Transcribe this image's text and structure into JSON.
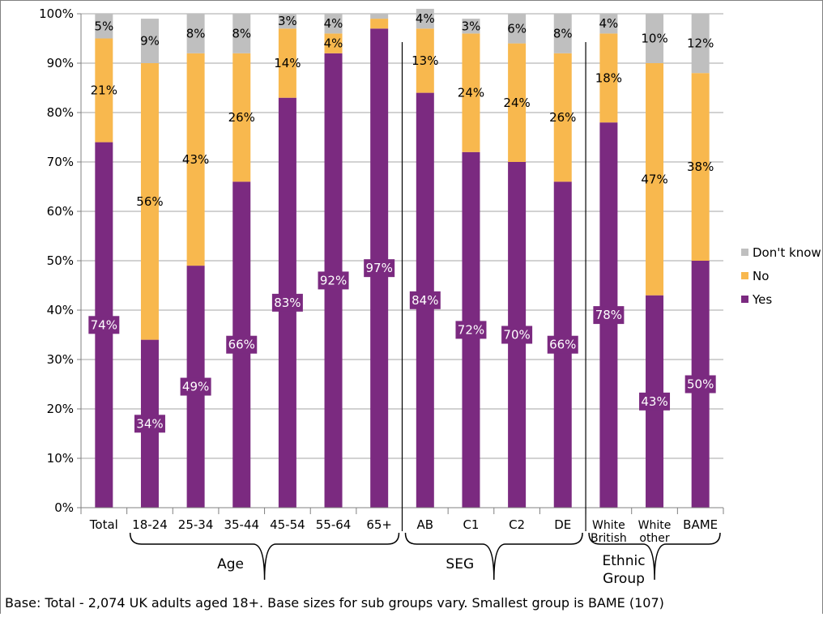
{
  "chart_data": {
    "type": "bar",
    "stacked": true,
    "categories": [
      "Total",
      "18-24",
      "25-34",
      "35-44",
      "45-54",
      "55-64",
      "65+",
      "AB",
      "C1",
      "C2",
      "DE",
      "White British",
      "White other",
      "BAME"
    ],
    "category_lines": [
      [
        "Total"
      ],
      [
        "18-24"
      ],
      [
        "25-34"
      ],
      [
        "35-44"
      ],
      [
        "45-54"
      ],
      [
        "55-64"
      ],
      [
        "65+"
      ],
      [
        "AB"
      ],
      [
        "C1"
      ],
      [
        "C2"
      ],
      [
        "DE"
      ],
      [
        "White",
        "British"
      ],
      [
        "White",
        "other"
      ],
      [
        "BAME"
      ]
    ],
    "series": [
      {
        "name": "Yes",
        "color": "#7b2a80",
        "values": [
          74,
          34,
          49,
          66,
          83,
          92,
          97,
          84,
          72,
          70,
          66,
          78,
          43,
          50
        ],
        "labels": [
          "74%",
          "34%",
          "49%",
          "66%",
          "83%",
          "92%",
          "97%",
          "84%",
          "72%",
          "70%",
          "66%",
          "78%",
          "43%",
          "50%"
        ]
      },
      {
        "name": "No",
        "color": "#f8b84e",
        "values": [
          21,
          56,
          43,
          26,
          14,
          4,
          2,
          13,
          24,
          24,
          26,
          18,
          47,
          38
        ],
        "labels": [
          "21%",
          "56%",
          "43%",
          "26%",
          "14%",
          "4%",
          "",
          "13%",
          "24%",
          "24%",
          "26%",
          "18%",
          "47%",
          "38%"
        ]
      },
      {
        "name": "Don't know",
        "color": "#bfbfbf",
        "values": [
          5,
          9,
          8,
          8,
          3,
          4,
          1,
          4,
          3,
          6,
          8,
          4,
          10,
          12
        ],
        "labels": [
          "5%",
          "9%",
          "8%",
          "8%",
          "3%",
          "4%",
          "",
          "4%",
          "3%",
          "6%",
          "8%",
          "4%",
          "10%",
          "12%"
        ]
      }
    ],
    "y_ticks": [
      "0%",
      "10%",
      "20%",
      "30%",
      "40%",
      "50%",
      "60%",
      "70%",
      "80%",
      "90%",
      "100%"
    ],
    "ylim": [
      0,
      100
    ],
    "grid": true,
    "legend": {
      "position": "right",
      "order": [
        "Don't know",
        "No",
        "Yes"
      ]
    },
    "groups": [
      {
        "lines": [
          "Age"
        ],
        "from": 1,
        "to": 6
      },
      {
        "lines": [
          "SEG"
        ],
        "from": 7,
        "to": 10
      },
      {
        "lines": [
          "Ethnic",
          "Group"
        ],
        "from": 11,
        "to": 13
      }
    ],
    "separators_after": [
      6,
      10
    ]
  },
  "footnote": "Base: Total - 2,074 UK adults aged 18+. Base sizes for sub groups vary. Smallest group is BAME (107)"
}
